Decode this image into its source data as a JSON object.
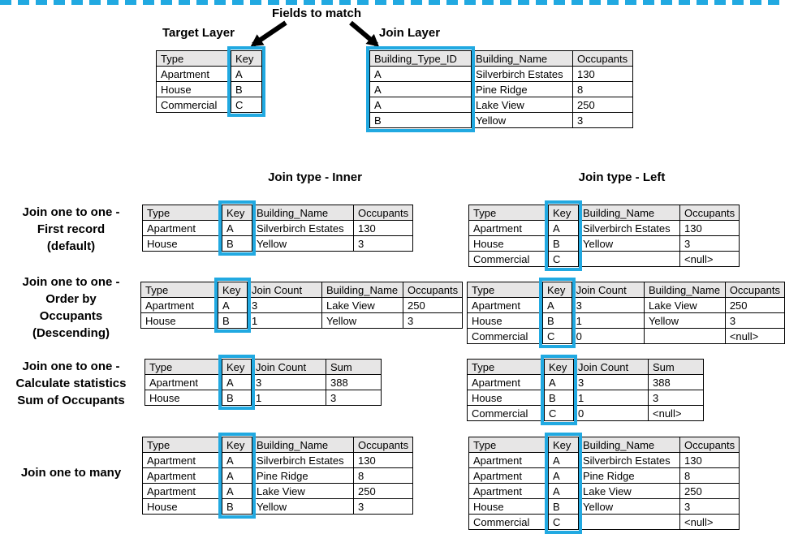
{
  "colors": {
    "accent": "#21A9E1",
    "header_bg": "#E7E6E6",
    "table_border": "#000000",
    "text": "#000000"
  },
  "icons": {
    "arrow_left": "thick-arrow-down-left",
    "arrow_right": "thick-arrow-down-right"
  },
  "top": {
    "fields_to_match": "Fields to match",
    "target_layer_label": "Target Layer",
    "join_layer_label": "Join Layer"
  },
  "section_headers": {
    "inner": "Join type - Inner",
    "left": "Join type - Left"
  },
  "row_labels": {
    "r1": [
      "Join one to one -",
      "First record",
      "(default)"
    ],
    "r2": [
      "Join one to one -",
      "Order by",
      "Occupants",
      "(Descending)"
    ],
    "r3": [
      "Join one to one -",
      "Calculate statistics",
      "Sum of Occupants"
    ],
    "r4": [
      "Join one to many"
    ]
  },
  "tables": {
    "target": {
      "columns": [
        "Type",
        "Key"
      ],
      "key_col": 1,
      "rows": [
        [
          "Apartment",
          "A"
        ],
        [
          "House",
          "B"
        ],
        [
          "Commercial",
          "C"
        ]
      ]
    },
    "join_layer": {
      "columns": [
        "Building_Type_ID",
        "Building_Name",
        "Occupants"
      ],
      "key_col": 0,
      "rows": [
        [
          "A",
          "Silverbirch Estates",
          "130"
        ],
        [
          "A",
          "Pine Ridge",
          "8"
        ],
        [
          "A",
          "Lake View",
          "250"
        ],
        [
          "B",
          "Yellow",
          "3"
        ]
      ]
    },
    "inner_first": {
      "columns": [
        "Type",
        "Key",
        "Building_Name",
        "Occupants"
      ],
      "key_col": 1,
      "rows": [
        [
          "Apartment",
          "A",
          "Silverbirch Estates",
          "130"
        ],
        [
          "House",
          "B",
          "Yellow",
          "3"
        ]
      ]
    },
    "left_first": {
      "columns": [
        "Type",
        "Key",
        "Building_Name",
        "Occupants"
      ],
      "key_col": 1,
      "rows": [
        [
          "Apartment",
          "A",
          "Silverbirch Estates",
          "130"
        ],
        [
          "House",
          "B",
          "Yellow",
          "3"
        ],
        [
          "Commercial",
          "C",
          "",
          "<null>"
        ]
      ]
    },
    "inner_order": {
      "columns": [
        "Type",
        "Key",
        "Join Count",
        "Building_Name",
        "Occupants"
      ],
      "key_col": 1,
      "rows": [
        [
          "Apartment",
          "A",
          "3",
          "Lake View",
          "250"
        ],
        [
          "House",
          "B",
          "1",
          "Yellow",
          "3"
        ]
      ]
    },
    "left_order": {
      "columns": [
        "Type",
        "Key",
        "Join Count",
        "Building_Name",
        "Occupants"
      ],
      "key_col": 1,
      "rows": [
        [
          "Apartment",
          "A",
          "3",
          "Lake View",
          "250"
        ],
        [
          "House",
          "B",
          "1",
          "Yellow",
          "3"
        ],
        [
          "Commercial",
          "C",
          "0",
          "",
          "<null>"
        ]
      ]
    },
    "inner_stats": {
      "columns": [
        "Type",
        "Key",
        "Join Count",
        "Sum"
      ],
      "key_col": 1,
      "rows": [
        [
          "Apartment",
          "A",
          "3",
          "388"
        ],
        [
          "House",
          "B",
          "1",
          "3"
        ]
      ]
    },
    "left_stats": {
      "columns": [
        "Type",
        "Key",
        "Join Count",
        "Sum"
      ],
      "key_col": 1,
      "rows": [
        [
          "Apartment",
          "A",
          "3",
          "388"
        ],
        [
          "House",
          "B",
          "1",
          "3"
        ],
        [
          "Commercial",
          "C",
          "0",
          "<null>"
        ]
      ]
    },
    "inner_many": {
      "columns": [
        "Type",
        "Key",
        "Building_Name",
        "Occupants"
      ],
      "key_col": 1,
      "rows": [
        [
          "Apartment",
          "A",
          "Silverbirch Estates",
          "130"
        ],
        [
          "Apartment",
          "A",
          "Pine Ridge",
          "8"
        ],
        [
          "Apartment",
          "A",
          "Lake View",
          "250"
        ],
        [
          "House",
          "B",
          "Yellow",
          "3"
        ]
      ]
    },
    "left_many": {
      "columns": [
        "Type",
        "Key",
        "Building_Name",
        "Occupants"
      ],
      "key_col": 1,
      "rows": [
        [
          "Apartment",
          "A",
          "Silverbirch Estates",
          "130"
        ],
        [
          "Apartment",
          "A",
          "Pine Ridge",
          "8"
        ],
        [
          "Apartment",
          "A",
          "Lake View",
          "250"
        ],
        [
          "House",
          "B",
          "Yellow",
          "3"
        ],
        [
          "Commercial",
          "C",
          "",
          "<null>"
        ]
      ]
    }
  }
}
